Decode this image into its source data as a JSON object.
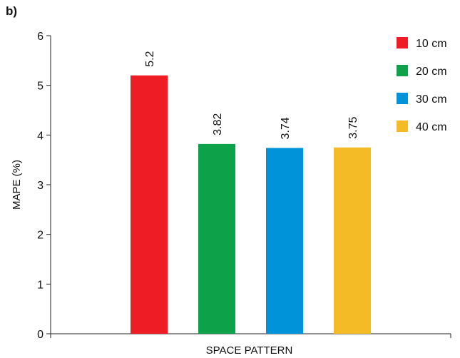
{
  "panel_label": "b)",
  "chart_data": {
    "type": "bar",
    "xlabel": "SPACE PATTERN",
    "ylabel": "MAPE (%)",
    "ylim": [
      0,
      6
    ],
    "yticks": [
      0,
      1,
      2,
      3,
      4,
      5,
      6
    ],
    "grid": false,
    "legend_position": "top-right",
    "series": [
      {
        "name": "10 cm",
        "value": 5.2,
        "label": "5.2",
        "color": "#ee1c25"
      },
      {
        "name": "20 cm",
        "value": 3.82,
        "label": "3.82",
        "color": "#0da24a"
      },
      {
        "name": "30 cm",
        "value": 3.74,
        "label": "3.74",
        "color": "#0093d9"
      },
      {
        "name": "40 cm",
        "value": 3.75,
        "label": "3.75",
        "color": "#f5bb27"
      }
    ]
  }
}
